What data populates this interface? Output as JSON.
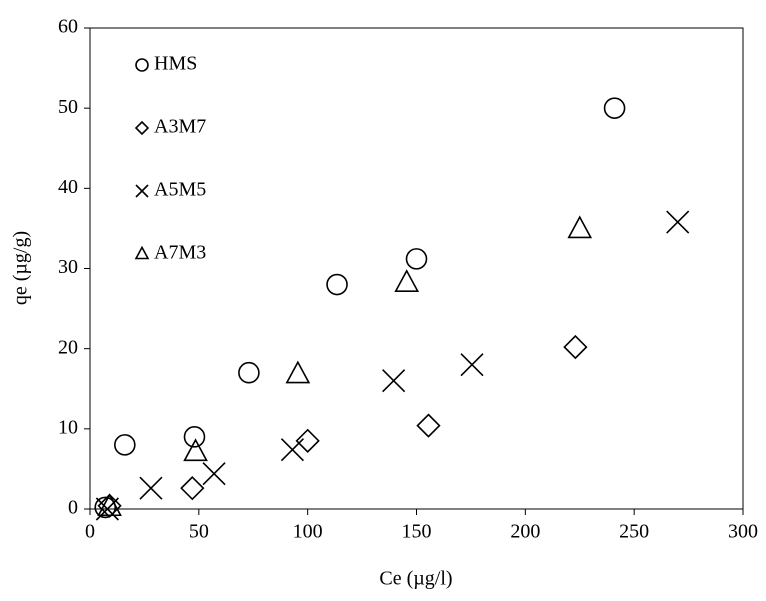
{
  "chart_data": {
    "type": "scatter",
    "x_label": "Ce (µg/l)",
    "y_label": "qe (µg/g)",
    "xlim": [
      0,
      300
    ],
    "xticks": [
      0,
      50,
      100,
      150,
      200,
      250,
      300
    ],
    "ylim": [
      0,
      60
    ],
    "yticks": [
      0,
      10,
      20,
      30,
      40,
      50,
      60
    ],
    "grid": false,
    "legend": "upper left",
    "series": [
      {
        "name": "HMS",
        "marker": "circle",
        "color": "#000000",
        "x": [
          7,
          16,
          48,
          73,
          113.5,
          150,
          241
        ],
        "values": [
          0.2,
          8,
          9,
          17,
          28,
          31.2,
          50
        ]
      },
      {
        "name": "A3M7",
        "marker": "diamond",
        "color": "#000000",
        "x": [
          9,
          47,
          100,
          155.5,
          223
        ],
        "values": [
          0.4,
          2.6,
          8.5,
          10.4,
          20.2
        ]
      },
      {
        "name": "A5M5",
        "marker": "x",
        "color": "#000000",
        "x": [
          8,
          28,
          57,
          93,
          139.5,
          175.5,
          270
        ],
        "values": [
          0,
          2.6,
          4.4,
          7.4,
          16,
          18,
          35.8
        ]
      },
      {
        "name": "A7M3",
        "marker": "triangle",
        "color": "#000000",
        "x": [
          9,
          48.5,
          95.5,
          145.5,
          225
        ],
        "values": [
          0.25,
          7.1,
          16.8,
          28.2,
          34.9
        ]
      }
    ]
  }
}
